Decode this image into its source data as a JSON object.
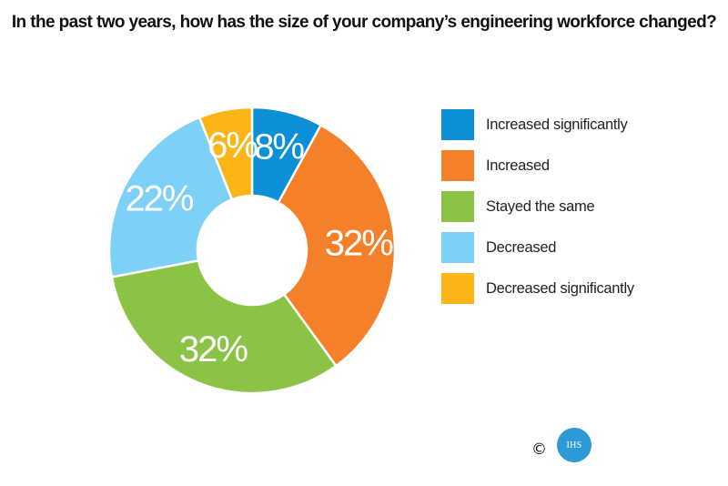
{
  "title": "In the past two years, how has the size of your company’s engineering workforce changed?",
  "chart_data": {
    "type": "pie",
    "title": "In the past two years, how has the size of your company’s engineering workforce changed?",
    "categories": [
      "Increased significantly",
      "Increased",
      "Stayed the same",
      "Decreased",
      "Decreased significantly"
    ],
    "values": [
      8,
      32,
      32,
      22,
      6
    ],
    "labels": [
      "8%",
      "32%",
      "32%",
      "22%",
      "6%"
    ],
    "colors": [
      "#0b8fd6",
      "#f4802a",
      "#8bc445",
      "#7ed1f6",
      "#fbb516"
    ],
    "unit": "%",
    "donut": true,
    "legend": "right"
  },
  "legend": [
    {
      "label": "Increased significantly",
      "color": "#0b8fd6"
    },
    {
      "label": "Increased",
      "color": "#f4802a"
    },
    {
      "label": "Stayed the same",
      "color": "#8bc445"
    },
    {
      "label": "Decreased",
      "color": "#7ed1f6"
    },
    {
      "label": "Decreased significantly",
      "color": "#fbb516"
    }
  ],
  "footer": {
    "copyright_symbol": "©",
    "logo_text": "IHS",
    "logo_color": "#2d9ad8"
  }
}
